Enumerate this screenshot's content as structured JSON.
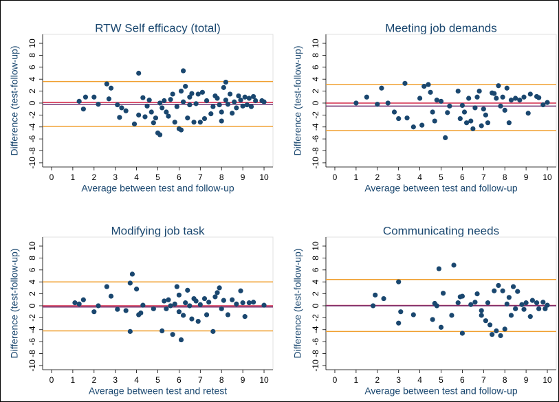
{
  "chart_data": [
    {
      "type": "scatter",
      "title": "RTW Self efficacy (total)",
      "xlabel": "Average between test and follow-up",
      "ylabel": "Difference (test-follow-up)",
      "color": "#1a476f",
      "xlim": [
        -0.42,
        10.42
      ],
      "ylim": [
        -10.7,
        11.5
      ],
      "xticks": [
        0,
        1,
        2,
        3,
        4,
        5,
        6,
        7,
        8,
        9,
        10
      ],
      "yticks": [
        -10,
        -8,
        -6,
        -4,
        -2,
        0,
        2,
        4,
        6,
        8,
        10
      ],
      "reference_lines": [
        {
          "value": 3.6,
          "color": "#f0a030"
        },
        {
          "value": -3.9,
          "color": "#f0a030"
        },
        {
          "value": 0.1,
          "color": "#d2294a"
        },
        {
          "value": -0.2,
          "color": "#6e2d6e"
        }
      ],
      "x": [
        1.3,
        1.5,
        1.6,
        2,
        2.2,
        2.6,
        2.8,
        2.7,
        3.1,
        3.3,
        3.2,
        3.5,
        3.9,
        4.1,
        4.1,
        4.3,
        4.4,
        4.5,
        4.6,
        4.7,
        4.8,
        4.9,
        5,
        5.1,
        5.1,
        5.2,
        5.3,
        5.4,
        5.5,
        5.6,
        5.7,
        5.8,
        5.9,
        6,
        6.1,
        6.1,
        6.2,
        6.2,
        6.3,
        6.4,
        6.5,
        6.5,
        6.6,
        6.7,
        6.8,
        6.9,
        7,
        7.1,
        7.2,
        7.3,
        7.5,
        7.6,
        7.7,
        7.8,
        7.9,
        8,
        8,
        8.1,
        8.2,
        8.2,
        8.3,
        8.4,
        8.5,
        8.6,
        8.7,
        8.8,
        8.9,
        9,
        9.1,
        9.2,
        9.3,
        9.4,
        9.5,
        9.6,
        9.9,
        10
      ],
      "values": [
        0.3,
        -1,
        1,
        1,
        -0.2,
        3.2,
        2.5,
        0.7,
        -0.3,
        -0.8,
        -2.4,
        -1.3,
        -3.5,
        5,
        -2,
        0.9,
        -2.3,
        -0.5,
        0.5,
        -1.5,
        -3.3,
        -2.5,
        -5,
        -5.3,
        0,
        -0.8,
        0.4,
        -1.5,
        -2.2,
        0.6,
        1.5,
        -3.2,
        -0.6,
        -4.3,
        -4.5,
        2,
        5.4,
        0.2,
        2.8,
        -2.5,
        1,
        -0.3,
        1.6,
        -3.2,
        -0.1,
        1.5,
        -3.2,
        1.8,
        -2.6,
        0.4,
        -1.8,
        -0.6,
        1.2,
        0.8,
        -0.3,
        -1.5,
        -3,
        2.6,
        3.5,
        0.5,
        -0.2,
        1.5,
        -1.7,
        0.2,
        -0.8,
        1.2,
        0.5,
        -0.5,
        1,
        -0.3,
        0.8,
        -0.6,
        1.1,
        0.4,
        0.4,
        0.2
      ]
    },
    {
      "type": "scatter",
      "title": "Meeting job demands",
      "xlabel": "Average between test and follow-up",
      "ylabel": "Difference (test-follow-up)",
      "color": "#1a476f",
      "xlim": [
        -0.42,
        10.42
      ],
      "ylim": [
        -10.7,
        11.5
      ],
      "xticks": [
        0,
        1,
        2,
        3,
        4,
        5,
        6,
        7,
        8,
        9,
        10
      ],
      "yticks": [
        -10,
        -8,
        -6,
        -4,
        -2,
        0,
        2,
        4,
        6,
        8,
        10
      ],
      "reference_lines": [
        {
          "value": 3.1,
          "color": "#f0a030"
        },
        {
          "value": -4.6,
          "color": "#f0a030"
        },
        {
          "value": 0,
          "color": "#d2294a"
        },
        {
          "value": -0.5,
          "color": "#6e2d6e"
        }
      ],
      "x": [
        1,
        1.5,
        2,
        2.2,
        2.5,
        2.8,
        3,
        3.3,
        3.4,
        3.7,
        4,
        4.1,
        4.2,
        4.4,
        4.5,
        4.6,
        4.7,
        4.8,
        5,
        5.2,
        5.3,
        5.4,
        5.8,
        5.9,
        6,
        6.1,
        6.2,
        6.3,
        6.4,
        6.5,
        6.6,
        6.7,
        6.8,
        6.9,
        7,
        7.1,
        7.2,
        7.4,
        7.5,
        7.6,
        7.7,
        7.8,
        7.9,
        8,
        8.1,
        8.2,
        8.3,
        8.5,
        8.7,
        8.9,
        9.1,
        9.2,
        9.5,
        9.6,
        9.8,
        10
      ],
      "values": [
        0,
        1,
        -0.2,
        2.5,
        0,
        -1.5,
        -2.6,
        3.3,
        -2.5,
        -4,
        0.8,
        -3.7,
        2.8,
        3.1,
        1.8,
        -1.5,
        -3,
        0.5,
        0.3,
        -5.8,
        -1.6,
        -0.5,
        2,
        -2.6,
        -0.4,
        -1.5,
        -3.3,
        0.8,
        -3,
        -4.3,
        -0.8,
        1,
        2,
        -3.8,
        -1,
        -2,
        -3.3,
        1.7,
        1.6,
        0.8,
        2.9,
        -0.5,
        1,
        -1.2,
        2.5,
        -3.3,
        0.5,
        0.8,
        0.5,
        1,
        -1.7,
        1.5,
        1.1,
        0.9,
        -0.3,
        0.1
      ]
    },
    {
      "type": "scatter",
      "title": "Modifying job task",
      "xlabel": "Average between test and retest",
      "ylabel": "Difference (test-follow-up)",
      "color": "#1a476f",
      "xlim": [
        -0.42,
        10.42
      ],
      "ylim": [
        -10.7,
        11.5
      ],
      "xticks": [
        0,
        1,
        2,
        3,
        4,
        5,
        6,
        7,
        8,
        9,
        10
      ],
      "yticks": [
        -10,
        -8,
        -6,
        -4,
        -2,
        0,
        2,
        4,
        6,
        8,
        10
      ],
      "reference_lines": [
        {
          "value": 4,
          "color": "#f0a030"
        },
        {
          "value": -4.2,
          "color": "#f0a030"
        },
        {
          "value": 0,
          "color": "#d2294a"
        },
        {
          "value": -0.2,
          "color": "#6e2d6e"
        }
      ],
      "x": [
        1.1,
        1.3,
        1.5,
        2,
        2.2,
        2.6,
        2.8,
        3.1,
        3.5,
        3.7,
        3.7,
        3.8,
        4,
        4.1,
        4.2,
        4.3,
        4.8,
        5.2,
        5.3,
        5.4,
        5.5,
        5.6,
        5.7,
        5.8,
        5.9,
        6,
        6,
        6.1,
        6.2,
        6.3,
        6.4,
        6.5,
        6.6,
        6.7,
        6.8,
        6.9,
        7,
        7.2,
        7.3,
        7.4,
        7.6,
        7.7,
        7.8,
        7.9,
        8,
        8.1,
        8.3,
        8.5,
        8.7,
        8.9,
        9,
        9.1,
        9.3,
        9.5,
        10
      ],
      "values": [
        0.5,
        0.3,
        1,
        -1,
        0,
        3.2,
        1.6,
        -0.6,
        -0.8,
        3.8,
        -4.3,
        5.3,
        2.8,
        -1.5,
        -1.2,
        0.1,
        -0.5,
        -4.2,
        0.8,
        -0.5,
        1,
        0,
        -4.8,
        0.3,
        3.2,
        -1,
        1.8,
        -5.7,
        -1.6,
        0.5,
        2.6,
        0,
        -2.2,
        1.2,
        0.8,
        -2.6,
        0.2,
        1.2,
        -1.5,
        0.6,
        -4.3,
        1.5,
        2.2,
        3,
        -0.5,
        0.9,
        -1.5,
        1,
        0.3,
        2.5,
        0.5,
        -1.8,
        0.5,
        0.6,
        0.1
      ]
    },
    {
      "type": "scatter",
      "title": "Communicating needs",
      "xlabel": "Average between test and follow-up",
      "ylabel": "Difference (test-follow-up)",
      "color": "#1a476f",
      "xlim": [
        -0.42,
        10.42
      ],
      "ylim": [
        -10.7,
        11.5
      ],
      "xticks": [
        0,
        1,
        2,
        3,
        4,
        5,
        6,
        7,
        8,
        9,
        10
      ],
      "yticks": [
        -10,
        -8,
        -6,
        -4,
        -2,
        0,
        2,
        4,
        6,
        8,
        10
      ],
      "reference_lines": [
        {
          "value": 4.4,
          "color": "#f0a030"
        },
        {
          "value": -4.3,
          "color": "#f0a030"
        },
        {
          "value": 0.05,
          "color": "#d2294a"
        },
        {
          "value": 0,
          "color": "#6e2d6e"
        }
      ],
      "x": [
        1.8,
        1.9,
        2.3,
        3,
        3,
        3.1,
        3.7,
        4.6,
        4.7,
        4.8,
        4.9,
        5,
        5.1,
        5.5,
        5.6,
        5.8,
        5.9,
        6,
        6,
        6.4,
        6.6,
        6.7,
        6.9,
        6.9,
        7.1,
        7.2,
        7.3,
        7.4,
        7.5,
        7.6,
        7.7,
        7.8,
        7.9,
        8,
        8.1,
        8.2,
        8.3,
        8.4,
        8.5,
        8.6,
        8.8,
        8.9,
        9,
        9.2,
        9.3,
        9.5,
        9.6,
        9.8,
        9.9,
        10
      ],
      "values": [
        0,
        1.8,
        1.2,
        4,
        -2.9,
        -1,
        -1.5,
        -2.3,
        0.4,
        0,
        6.2,
        -3.6,
        2.1,
        -1.6,
        6.8,
        0.5,
        1.5,
        -4.6,
        1.6,
        0.2,
        0.6,
        2,
        -0.8,
        -1.6,
        -2.5,
        0.5,
        -3.2,
        -4.8,
        2.5,
        -4.2,
        3.4,
        -5,
        2.5,
        -3.9,
        0.3,
        1.4,
        -1.6,
        3.2,
        -0.5,
        2.4,
        0.2,
        -0.6,
        0.5,
        -1.8,
        0.9,
        0.5,
        -0.5,
        0.6,
        -0.5,
        0.1
      ]
    }
  ]
}
